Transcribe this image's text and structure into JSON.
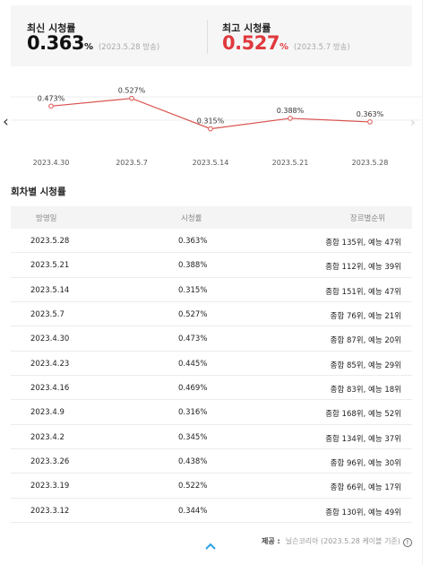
{
  "summary": {
    "latest": {
      "label": "최신 시청률",
      "value": "0.363",
      "unit": "%",
      "date": "(2023.5.28 방송)"
    },
    "best": {
      "label": "최고 시청률",
      "value": "0.527",
      "unit": "%",
      "date": "(2023.5.7 방송)"
    },
    "accent_color": "#e0393e"
  },
  "chart_data": {
    "type": "line",
    "categories": [
      "2023.4.30",
      "2023.5.7",
      "2023.5.14",
      "2023.5.21",
      "2023.5.28"
    ],
    "values": [
      0.473,
      0.527,
      0.315,
      0.388,
      0.363
    ],
    "labels": [
      "0.473%",
      "0.527%",
      "0.315%",
      "0.388%",
      "0.363%"
    ],
    "grid": true,
    "line_color": "#d9534f",
    "ylim": [
      0.25,
      0.6
    ]
  },
  "nav": {
    "prev_icon": "chevron-left-icon",
    "next_icon": "chevron-right-icon"
  },
  "section_title": "회차별 시청률",
  "table": {
    "headers": [
      "방영일",
      "시청률",
      "장르별순위"
    ],
    "rows": [
      [
        "2023.5.28",
        "0.363%",
        "종합 135위, 예능 47위"
      ],
      [
        "2023.5.21",
        "0.388%",
        "종합 112위, 예능 39위"
      ],
      [
        "2023.5.14",
        "0.315%",
        "종합 151위, 예능 47위"
      ],
      [
        "2023.5.7",
        "0.527%",
        "종합 76위, 예능 21위"
      ],
      [
        "2023.4.30",
        "0.473%",
        "종합 87위, 예능 20위"
      ],
      [
        "2023.4.23",
        "0.445%",
        "종합 85위, 예능 29위"
      ],
      [
        "2023.4.16",
        "0.469%",
        "종합 83위, 예능 18위"
      ],
      [
        "2023.4.9",
        "0.316%",
        "종합 168위, 예능 52위"
      ],
      [
        "2023.4.2",
        "0.345%",
        "종합 134위, 예능 37위"
      ],
      [
        "2023.3.26",
        "0.438%",
        "종합 96위, 예능 30위"
      ],
      [
        "2023.3.19",
        "0.522%",
        "종합 66위, 예능 17위"
      ],
      [
        "2023.3.12",
        "0.344%",
        "종합 130위, 예능 49위"
      ]
    ]
  },
  "footer": {
    "source_label": "제공 :",
    "source_text": "닐슨코리아 (2023.5.28 케이블 기준)",
    "info_icon": "!",
    "collapse_icon": "chevron-up-icon"
  }
}
